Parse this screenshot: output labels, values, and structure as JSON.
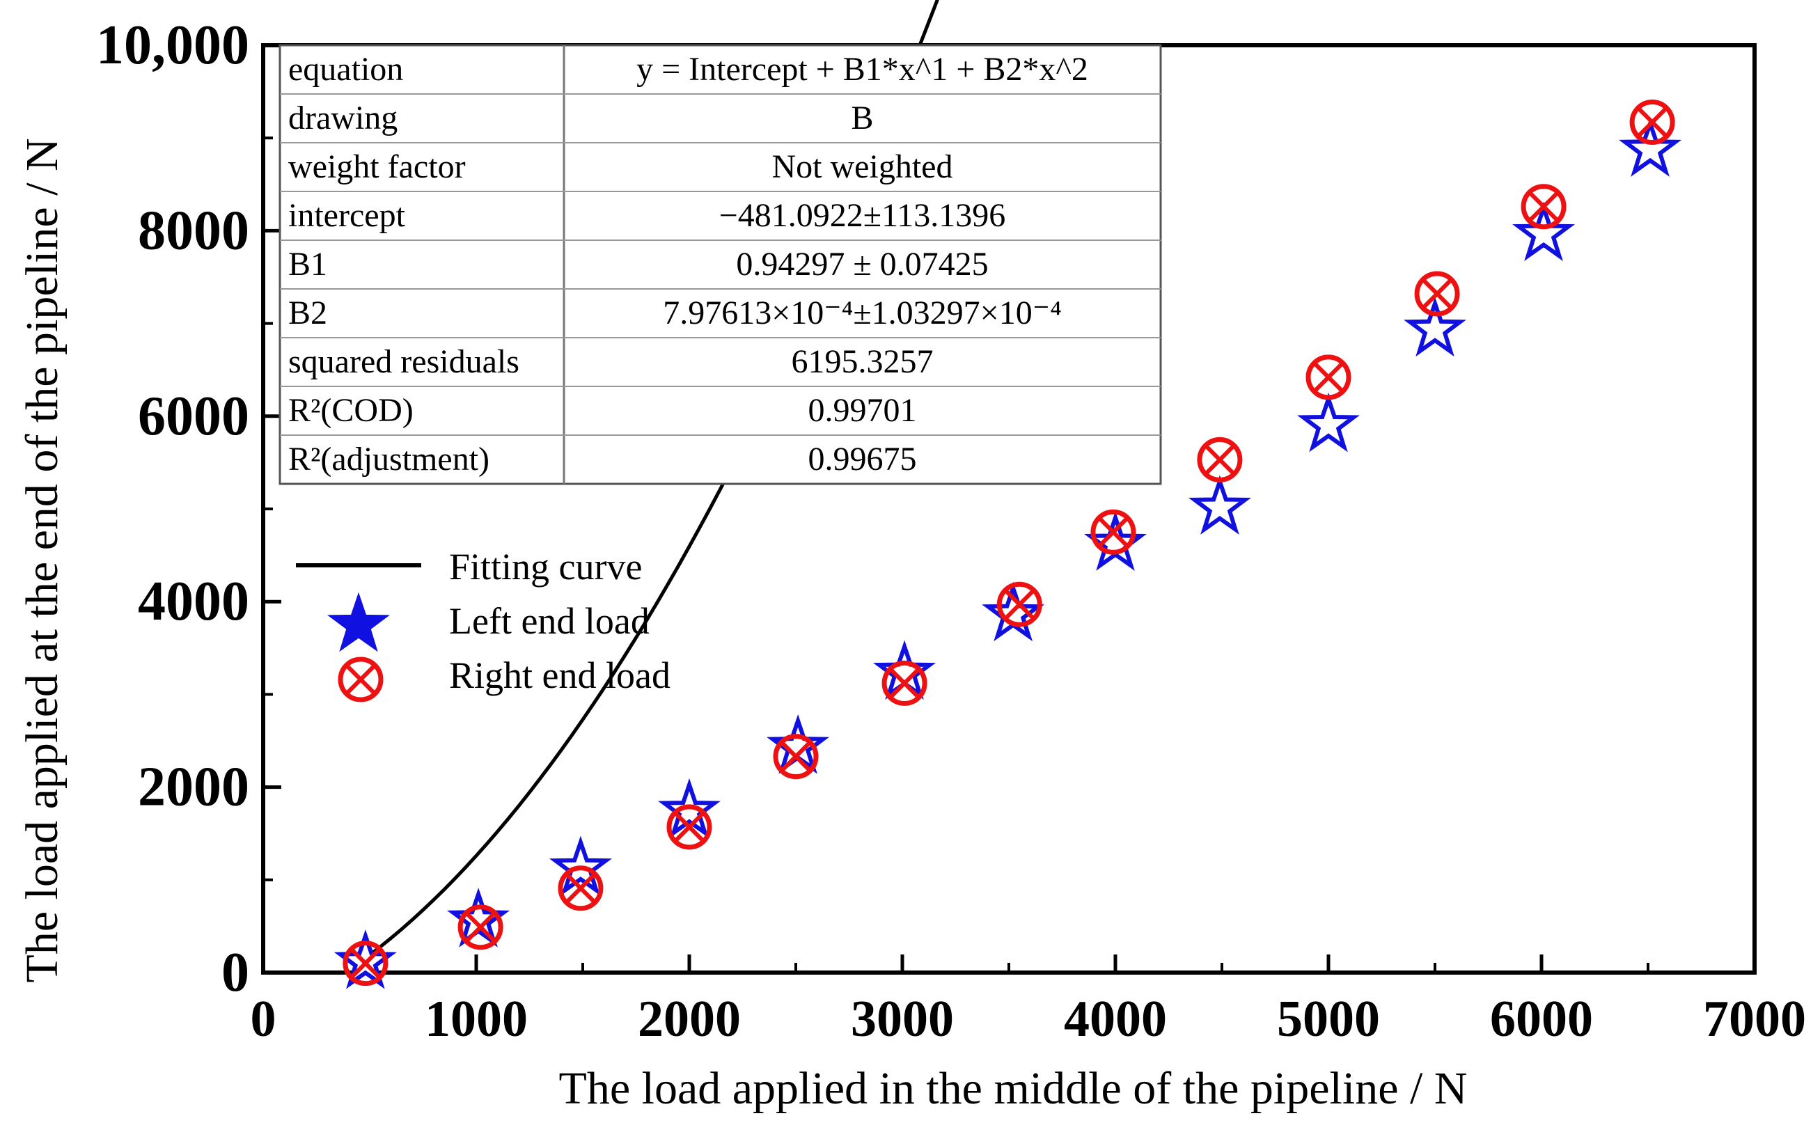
{
  "chart_data": {
    "type": "scatter",
    "title": "",
    "xlabel": "The load applied in the middle of the pipeline / N",
    "ylabel": "The load applied at the end of the pipeline / N",
    "xlim": [
      0,
      7000
    ],
    "ylim": [
      0,
      10000
    ],
    "x_ticks": [
      {
        "value": 0,
        "label": "0"
      },
      {
        "value": 1000,
        "label": "1000"
      },
      {
        "value": 2000,
        "label": "2000"
      },
      {
        "value": 3000,
        "label": "3000"
      },
      {
        "value": 4000,
        "label": "4000"
      },
      {
        "value": 5000,
        "label": "5000"
      },
      {
        "value": 6000,
        "label": "6000"
      },
      {
        "value": 7000,
        "label": "7000"
      }
    ],
    "y_ticks": [
      {
        "value": 0,
        "label": "0"
      },
      {
        "value": 2000,
        "label": "2000"
      },
      {
        "value": 4000,
        "label": "4000"
      },
      {
        "value": 6000,
        "label": "6000"
      },
      {
        "value": 8000,
        "label": "8000"
      },
      {
        "value": 10000,
        "label": "10,000"
      }
    ],
    "grid": false,
    "legend_position": "middle-left",
    "fit": {
      "name": "Fitting curve",
      "intercept": -481.0922,
      "b1": 0.94297,
      "b2": 0.000797613,
      "x_range": [
        500,
        6500
      ]
    },
    "series": [
      {
        "name": "Left end load",
        "marker": "star",
        "color": "#1010e0",
        "points": [
          {
            "x": 480,
            "y": 110
          },
          {
            "x": 1010,
            "y": 560
          },
          {
            "x": 1490,
            "y": 1120
          },
          {
            "x": 2000,
            "y": 1740
          },
          {
            "x": 2510,
            "y": 2430
          },
          {
            "x": 3010,
            "y": 3230
          },
          {
            "x": 3520,
            "y": 3860
          },
          {
            "x": 4000,
            "y": 4620
          },
          {
            "x": 4490,
            "y": 5010
          },
          {
            "x": 5000,
            "y": 5900
          },
          {
            "x": 5500,
            "y": 6930
          },
          {
            "x": 6010,
            "y": 7960
          },
          {
            "x": 6510,
            "y": 8870
          }
        ]
      },
      {
        "name": "Right end load",
        "marker": "circle-x",
        "color": "#ee1111",
        "points": [
          {
            "x": 480,
            "y": 100
          },
          {
            "x": 1020,
            "y": 490
          },
          {
            "x": 1490,
            "y": 910
          },
          {
            "x": 2000,
            "y": 1570
          },
          {
            "x": 2500,
            "y": 2330
          },
          {
            "x": 3010,
            "y": 3120
          },
          {
            "x": 3550,
            "y": 3970
          },
          {
            "x": 3990,
            "y": 4750
          },
          {
            "x": 4490,
            "y": 5530
          },
          {
            "x": 5000,
            "y": 6420
          },
          {
            "x": 5510,
            "y": 7320
          },
          {
            "x": 6010,
            "y": 8260
          },
          {
            "x": 6520,
            "y": 9170
          }
        ]
      }
    ],
    "stats_table": [
      {
        "label": "equation",
        "value": "y = Intercept + B1*x^1 + B2*x^2"
      },
      {
        "label": "drawing",
        "value": "B"
      },
      {
        "label": "weight factor",
        "value": "Not weighted"
      },
      {
        "label": "intercept",
        "value": "−481.0922±113.1396"
      },
      {
        "label": "B1",
        "value": "0.94297 ± 0.07425"
      },
      {
        "label": "B2",
        "value": "7.97613×10⁻⁴±1.03297×10⁻⁴"
      },
      {
        "label": "squared residuals",
        "value": "6195.3257"
      },
      {
        "label": "R²(COD)",
        "value": "0.99701"
      },
      {
        "label": "R²(adjustment)",
        "value": "0.99675"
      }
    ]
  }
}
